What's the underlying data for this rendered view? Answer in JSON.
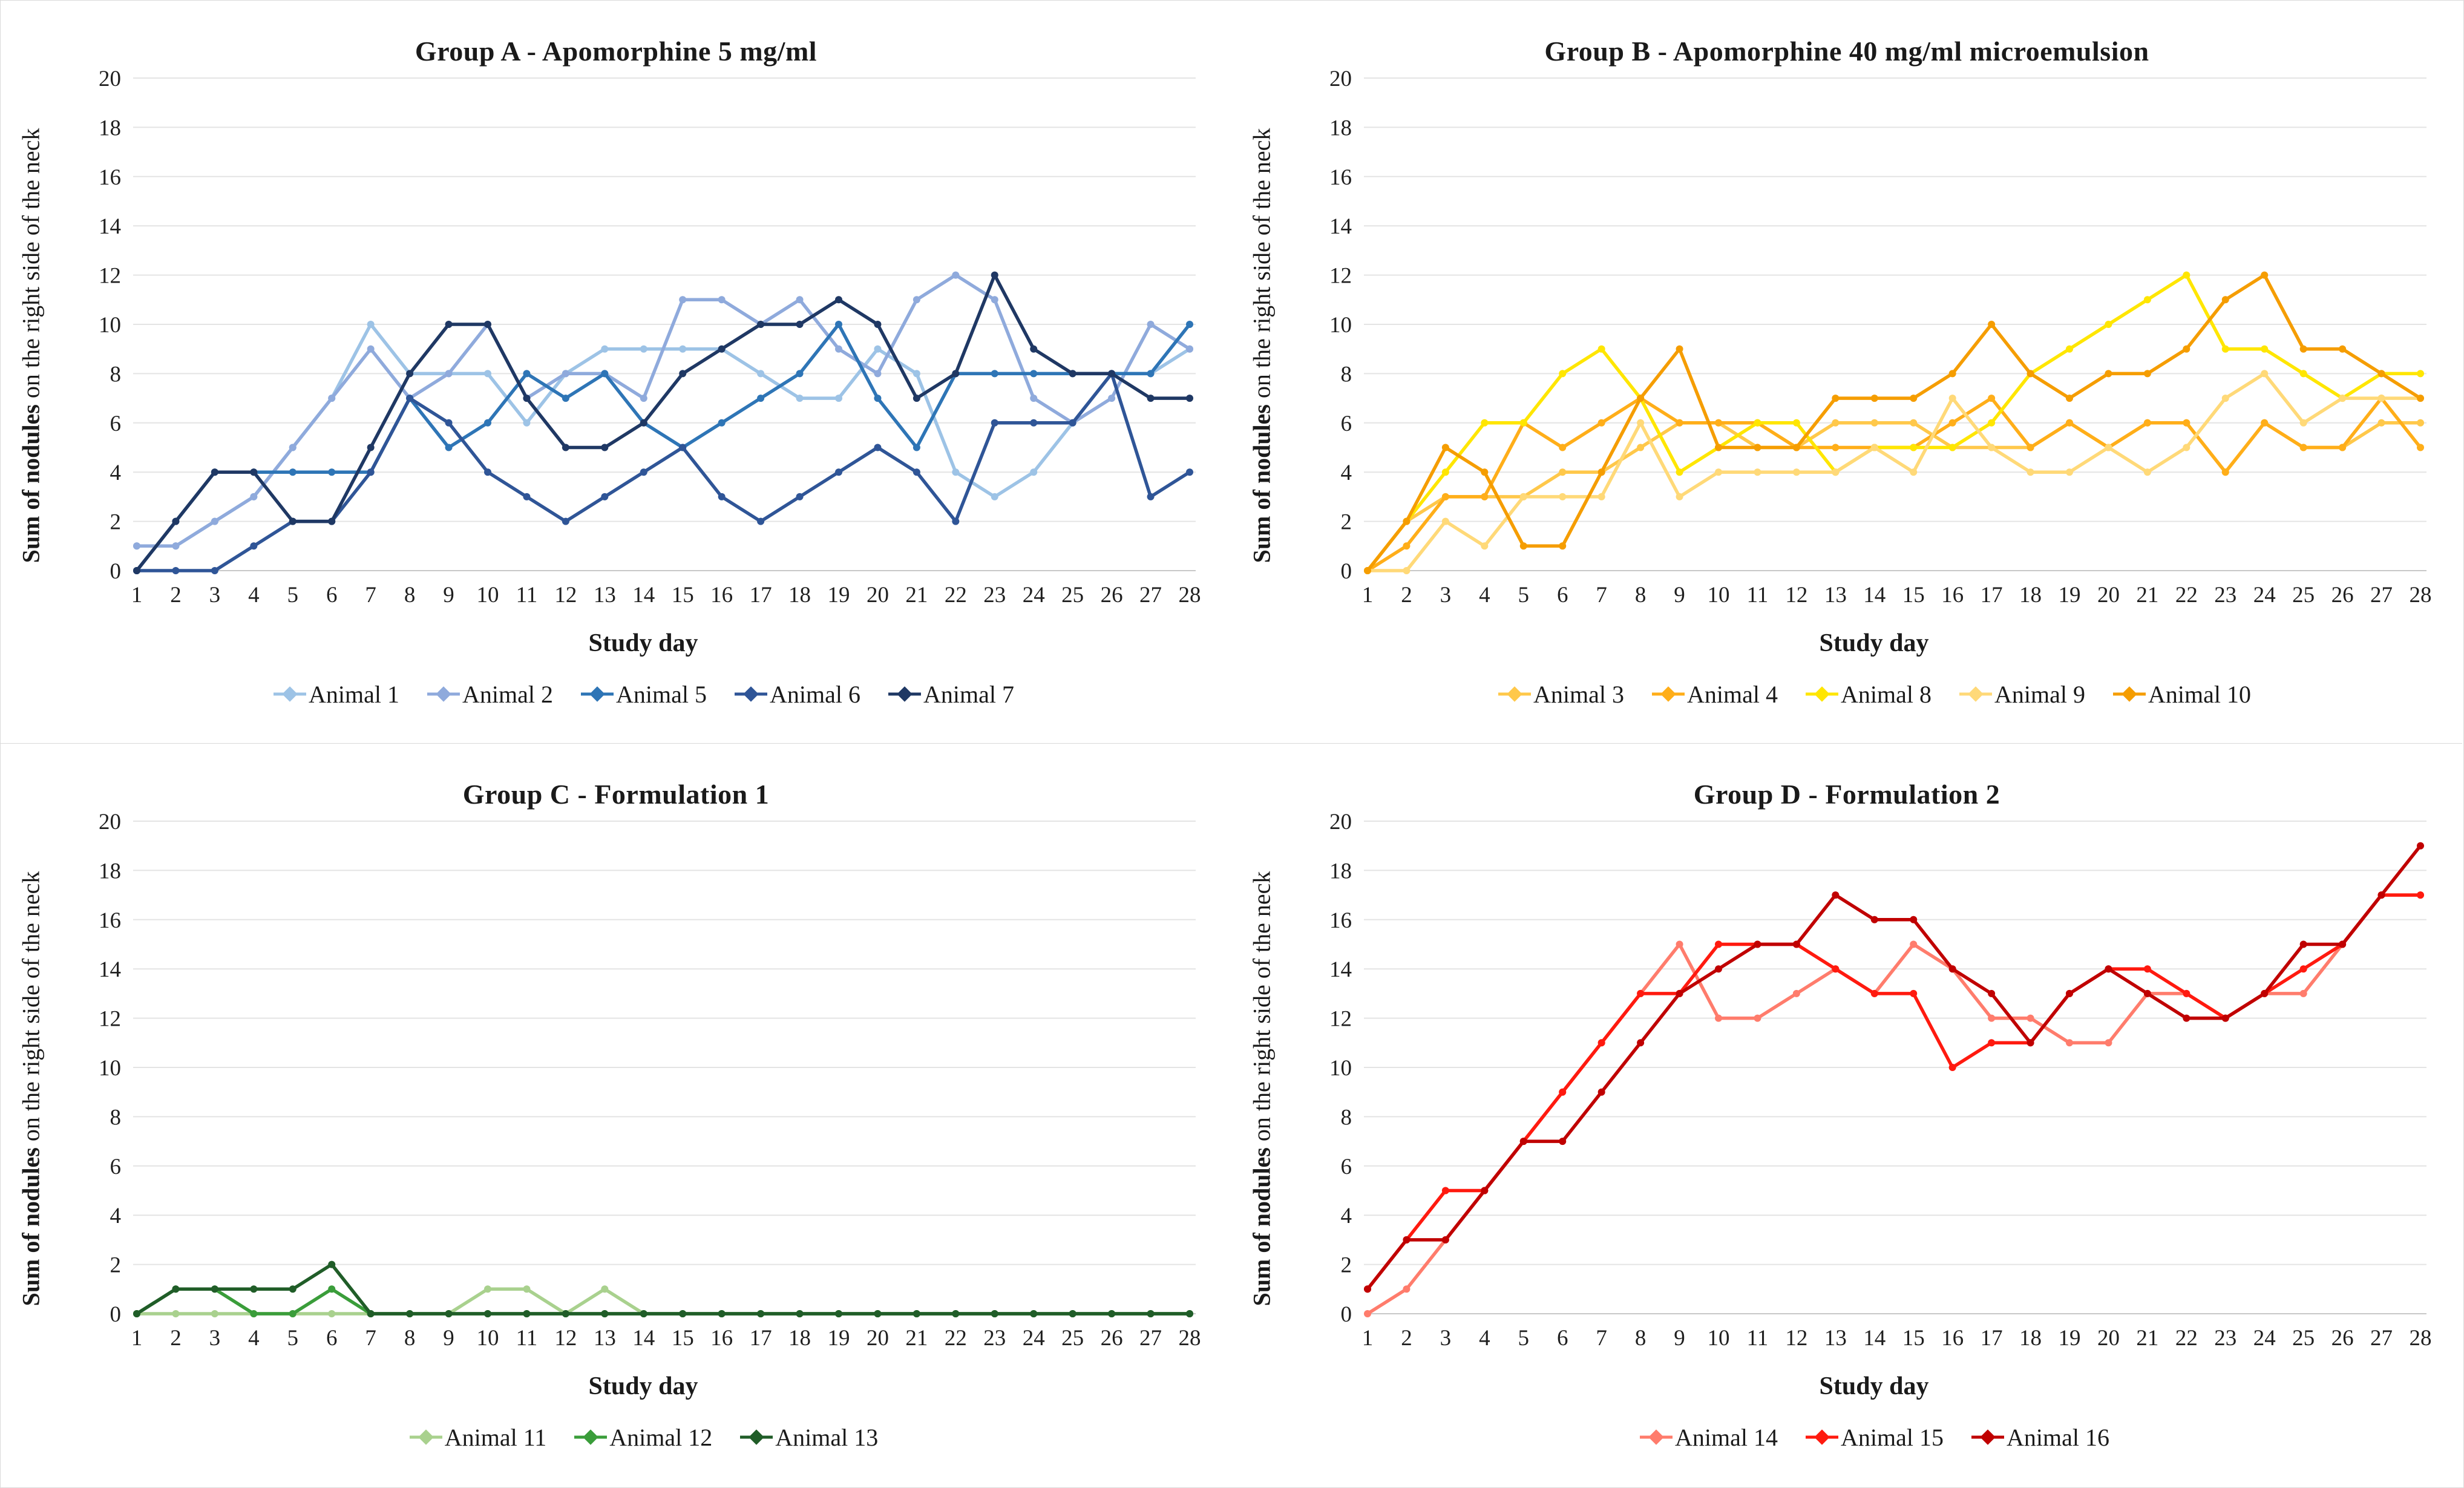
{
  "y_axis": {
    "label_bold": "Sum of nodules",
    "label_rest": " on the right side of the neck",
    "min": 0,
    "max": 20,
    "tick_step": 2,
    "ticks": [
      0,
      2,
      4,
      6,
      8,
      10,
      12,
      14,
      16,
      18,
      20
    ]
  },
  "x_axis": {
    "label": "Study day",
    "days": [
      1,
      2,
      3,
      4,
      5,
      6,
      7,
      8,
      9,
      10,
      11,
      12,
      13,
      14,
      15,
      16,
      17,
      18,
      19,
      20,
      21,
      22,
      23,
      24,
      25,
      26,
      27,
      28
    ]
  },
  "style": {
    "gridline_color": "#e4e4e4",
    "baseline_color": "#c8c8c8",
    "tick_text_color": "#1f1f1f"
  },
  "chart_data": [
    {
      "type": "line",
      "title": "Group A - Apomorphine 5 mg/ml",
      "xlabel": "Study day",
      "ylabel": "Sum of nodules on the right side of the neck",
      "ylim": [
        0,
        20
      ],
      "x": [
        1,
        2,
        3,
        4,
        5,
        6,
        7,
        8,
        9,
        10,
        11,
        12,
        13,
        14,
        15,
        16,
        17,
        18,
        19,
        20,
        21,
        22,
        23,
        24,
        25,
        26,
        27,
        28
      ],
      "legend_position": "bottom",
      "grid": true,
      "series": [
        {
          "name": "Animal 1",
          "color": "#9DC3E6",
          "values": [
            1,
            1,
            2,
            3,
            5,
            7,
            10,
            8,
            8,
            8,
            6,
            8,
            9,
            9,
            9,
            9,
            8,
            7,
            7,
            9,
            8,
            4,
            3,
            4,
            6,
            8,
            8,
            9
          ]
        },
        {
          "name": "Animal 2",
          "color": "#8FAADC",
          "values": [
            1,
            1,
            2,
            3,
            5,
            7,
            9,
            7,
            8,
            10,
            7,
            8,
            8,
            7,
            11,
            11,
            10,
            11,
            9,
            8,
            11,
            12,
            11,
            7,
            6,
            7,
            10,
            9
          ]
        },
        {
          "name": "Animal 5",
          "color": "#2E75B6",
          "values": [
            0,
            2,
            4,
            4,
            4,
            4,
            4,
            7,
            5,
            6,
            8,
            7,
            8,
            6,
            5,
            6,
            7,
            8,
            10,
            7,
            5,
            8,
            8,
            8,
            8,
            8,
            8,
            10
          ]
        },
        {
          "name": "Animal 6",
          "color": "#2F5597",
          "values": [
            0,
            0,
            0,
            1,
            2,
            2,
            4,
            7,
            6,
            4,
            3,
            2,
            3,
            4,
            5,
            3,
            2,
            3,
            4,
            5,
            4,
            2,
            6,
            6,
            6,
            8,
            3,
            4
          ]
        },
        {
          "name": "Animal 7",
          "color": "#1F3864",
          "values": [
            0,
            2,
            4,
            4,
            2,
            2,
            5,
            8,
            10,
            10,
            7,
            5,
            5,
            6,
            8,
            9,
            10,
            10,
            11,
            10,
            7,
            8,
            12,
            9,
            8,
            8,
            7,
            7
          ]
        }
      ]
    },
    {
      "type": "line",
      "title": "Group B -  Apomorphine 40 mg/ml microemulsion",
      "xlabel": "Study day",
      "ylabel": "Sum of nodules on the right side of the neck",
      "ylim": [
        0,
        20
      ],
      "x": [
        1,
        2,
        3,
        4,
        5,
        6,
        7,
        8,
        9,
        10,
        11,
        12,
        13,
        14,
        15,
        16,
        17,
        18,
        19,
        20,
        21,
        22,
        23,
        24,
        25,
        26,
        27,
        28
      ],
      "legend_position": "bottom",
      "grid": true,
      "series": [
        {
          "name": "Animal 3",
          "color": "#FFC84A",
          "values": [
            0,
            2,
            3,
            3,
            3,
            4,
            4,
            5,
            6,
            6,
            5,
            5,
            6,
            6,
            6,
            5,
            5,
            5,
            6,
            5,
            6,
            6,
            4,
            6,
            5,
            5,
            6,
            6
          ]
        },
        {
          "name": "Animal 4",
          "color": "#FFAE19",
          "values": [
            0,
            1,
            3,
            3,
            6,
            5,
            6,
            7,
            6,
            6,
            6,
            5,
            5,
            5,
            5,
            6,
            7,
            5,
            6,
            5,
            6,
            6,
            4,
            6,
            5,
            5,
            7,
            5
          ]
        },
        {
          "name": "Animal 8",
          "color": "#FFE600",
          "values": [
            0,
            2,
            4,
            6,
            6,
            8,
            9,
            7,
            4,
            5,
            6,
            6,
            4,
            5,
            5,
            5,
            6,
            8,
            9,
            10,
            11,
            12,
            9,
            9,
            8,
            7,
            8,
            8
          ]
        },
        {
          "name": "Animal 9",
          "color": "#FFD978",
          "values": [
            0,
            0,
            2,
            1,
            3,
            3,
            3,
            6,
            3,
            4,
            4,
            4,
            4,
            5,
            4,
            7,
            5,
            4,
            4,
            5,
            4,
            5,
            7,
            8,
            6,
            7,
            7,
            7
          ]
        },
        {
          "name": "Animal 10",
          "color": "#F59D00",
          "values": [
            0,
            2,
            5,
            4,
            1,
            1,
            4,
            7,
            9,
            5,
            5,
            5,
            7,
            7,
            7,
            8,
            10,
            8,
            7,
            8,
            8,
            9,
            11,
            12,
            9,
            9,
            8,
            7
          ]
        }
      ]
    },
    {
      "type": "line",
      "title": "Group C - Formulation 1",
      "xlabel": "Study day",
      "ylabel": "Sum of nodules on the right side of the neck",
      "ylim": [
        0,
        20
      ],
      "x": [
        1,
        2,
        3,
        4,
        5,
        6,
        7,
        8,
        9,
        10,
        11,
        12,
        13,
        14,
        15,
        16,
        17,
        18,
        19,
        20,
        21,
        22,
        23,
        24,
        25,
        26,
        27,
        28
      ],
      "legend_position": "bottom",
      "grid": true,
      "series": [
        {
          "name": "Animal 11",
          "color": "#A9D18E",
          "values": [
            0,
            0,
            0,
            0,
            0,
            0,
            0,
            0,
            0,
            1,
            1,
            0,
            1,
            0,
            0,
            0,
            0,
            0,
            0,
            0,
            0,
            0,
            0,
            0,
            0,
            0,
            0,
            0
          ]
        },
        {
          "name": "Animal 12",
          "color": "#3A9D3A",
          "values": [
            0,
            1,
            1,
            0,
            0,
            1,
            0,
            0,
            0,
            0,
            0,
            0,
            0,
            0,
            0,
            0,
            0,
            0,
            0,
            0,
            0,
            0,
            0,
            0,
            0,
            0,
            0,
            0
          ]
        },
        {
          "name": "Animal 13",
          "color": "#205D28",
          "values": [
            0,
            1,
            1,
            1,
            1,
            2,
            0,
            0,
            0,
            0,
            0,
            0,
            0,
            0,
            0,
            0,
            0,
            0,
            0,
            0,
            0,
            0,
            0,
            0,
            0,
            0,
            0,
            0
          ]
        }
      ]
    },
    {
      "type": "line",
      "title": "Group D - Formulation 2",
      "xlabel": "Study day",
      "ylabel": "Sum of nodules on the right side of the neck",
      "ylim": [
        0,
        20
      ],
      "x": [
        1,
        2,
        3,
        4,
        5,
        6,
        7,
        8,
        9,
        10,
        11,
        12,
        13,
        14,
        15,
        16,
        17,
        18,
        19,
        20,
        21,
        22,
        23,
        24,
        25,
        26,
        27,
        28
      ],
      "legend_position": "bottom",
      "grid": true,
      "series": [
        {
          "name": "Animal 14",
          "color": "#FF7C6C",
          "values": [
            0,
            1,
            3,
            5,
            7,
            9,
            11,
            13,
            15,
            12,
            12,
            13,
            14,
            13,
            15,
            14,
            12,
            12,
            11,
            11,
            13,
            13,
            12,
            13,
            13,
            15,
            17,
            17
          ]
        },
        {
          "name": "Animal 15",
          "color": "#FF1A0F",
          "values": [
            1,
            3,
            5,
            5,
            7,
            9,
            11,
            13,
            13,
            15,
            15,
            15,
            14,
            13,
            13,
            10,
            11,
            11,
            13,
            14,
            14,
            13,
            12,
            13,
            14,
            15,
            17,
            17
          ]
        },
        {
          "name": "Animal 16",
          "color": "#C00000",
          "values": [
            1,
            3,
            3,
            5,
            7,
            7,
            9,
            11,
            13,
            14,
            15,
            15,
            17,
            16,
            16,
            14,
            13,
            11,
            13,
            14,
            13,
            12,
            12,
            13,
            15,
            15,
            17,
            19
          ]
        }
      ]
    }
  ]
}
